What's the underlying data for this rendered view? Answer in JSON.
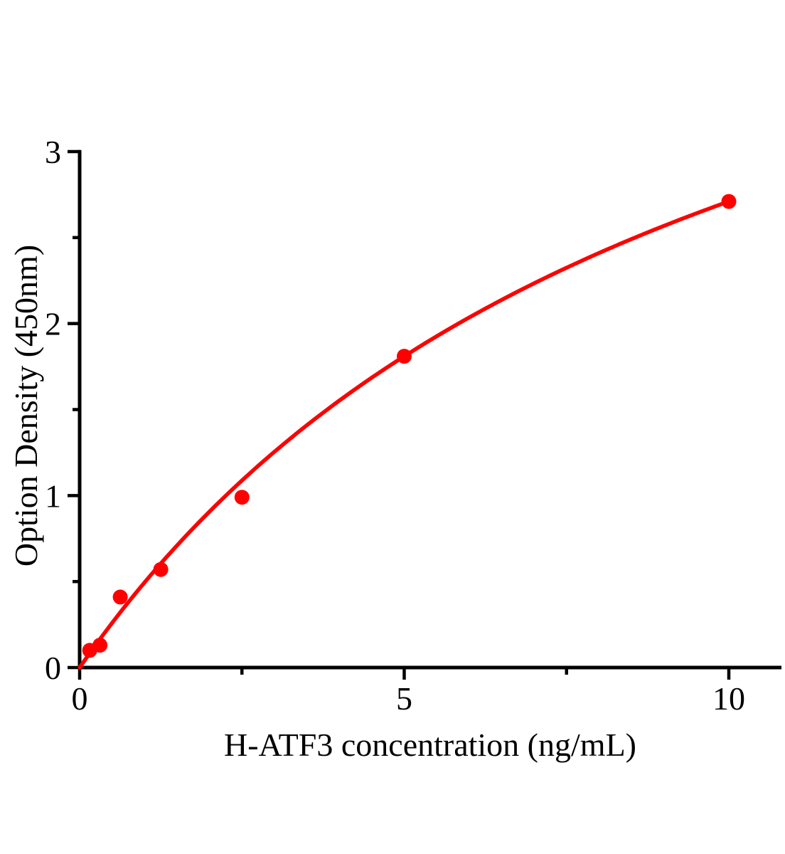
{
  "figure": {
    "background_color": "#ffffff",
    "description": "ELISA standard curve plot"
  },
  "chart_data": {
    "type": "scatter",
    "title": "",
    "xlabel": "H-ATF3 concentration (ng/mL)",
    "ylabel": "Option Density (450nm)",
    "x": [
      0.156,
      0.313,
      0.625,
      1.25,
      2.5,
      5,
      10
    ],
    "y": [
      0.1,
      0.13,
      0.41,
      0.57,
      0.99,
      1.81,
      2.71
    ],
    "fit_curve": {
      "model": "y = a*x / (b + x)",
      "a": 5.39,
      "b": 9.89,
      "x_start": 0,
      "x_end": 10
    },
    "xlim": [
      0,
      10.8
    ],
    "ylim": [
      0,
      3
    ],
    "x_major_ticks": [
      0,
      5,
      10
    ],
    "x_minor_ticks": [
      2.5,
      7.5
    ],
    "y_major_ticks": [
      0,
      1,
      2,
      3
    ],
    "y_minor_ticks": [
      0.5,
      1.5,
      2.5
    ],
    "grid": false,
    "legend": null,
    "marker_shape": "circle",
    "colors": {
      "marker": "#ff0000",
      "curve": "#ff0000",
      "axis": "#000000",
      "text": "#000000"
    }
  }
}
